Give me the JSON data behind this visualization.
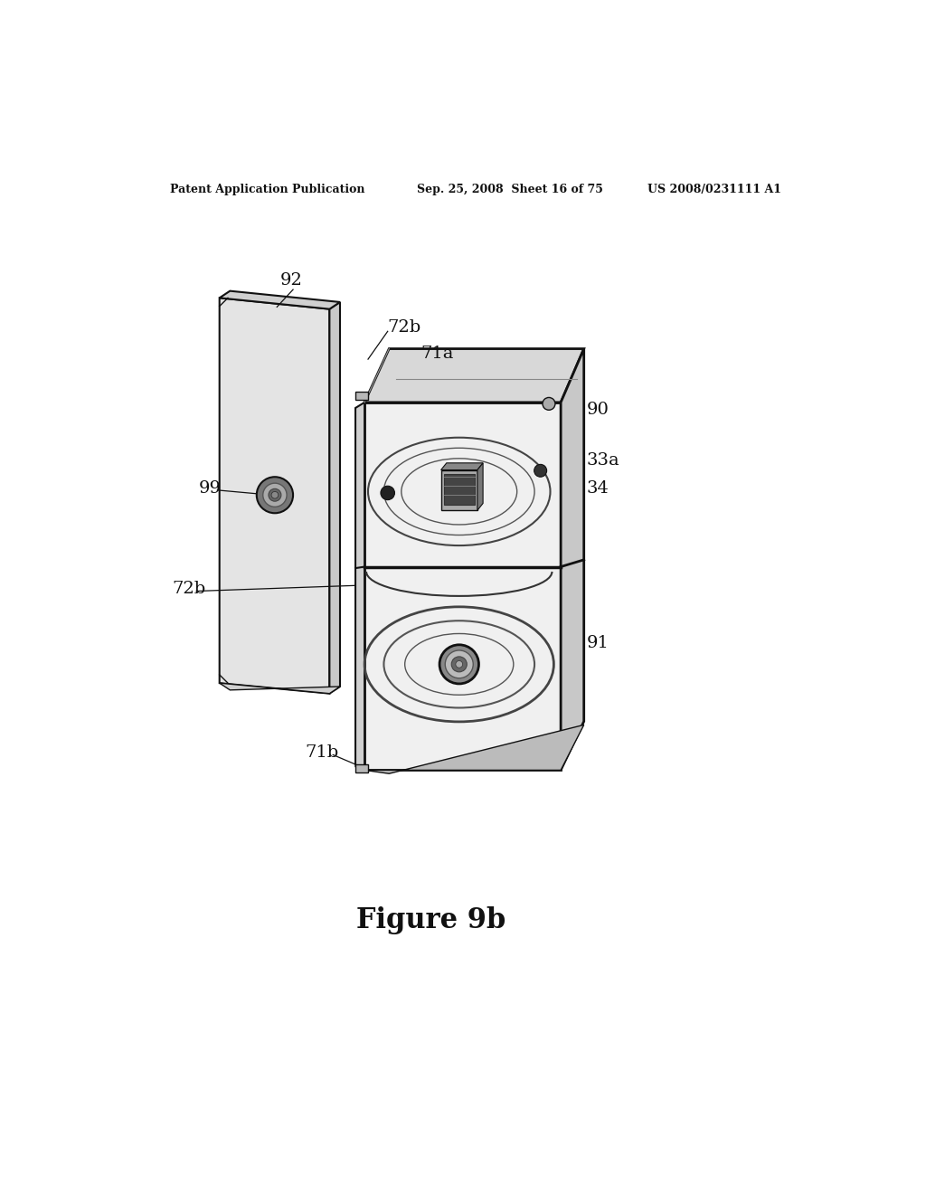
{
  "bg_color": "#ffffff",
  "header_left": "Patent Application Publication",
  "header_center": "Sep. 25, 2008  Sheet 16 of 75",
  "header_right": "US 2008/0231111 A1",
  "figure_label": "Figure 9b",
  "lc": "#111111",
  "face_front": "#eeeeee",
  "face_top": "#d4d4d4",
  "face_right": "#c0c0c0",
  "face_side": "#d8d8d8",
  "face_panel": "#e6e6e6"
}
